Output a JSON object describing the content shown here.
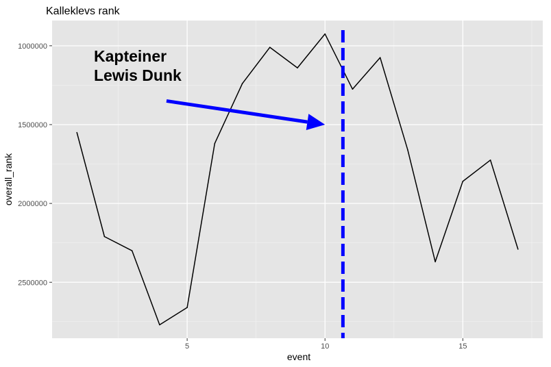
{
  "chart_data": {
    "type": "line",
    "title": "Kalleklevs rank",
    "xlabel": "event",
    "ylabel": "overall_rank",
    "x": [
      1,
      2,
      3,
      4,
      5,
      6,
      7,
      8,
      9,
      10,
      11,
      12,
      13,
      14,
      15,
      16,
      17
    ],
    "series": [
      {
        "values": [
          1550000,
          2210000,
          2300000,
          2770000,
          2660000,
          1620000,
          1240000,
          1010000,
          1140000,
          925000,
          1275000,
          1075000,
          1660000,
          2370000,
          1860000,
          1725000,
          2290000
        ],
        "color": "#000000"
      }
    ],
    "xlim": [
      0.1,
      17.9
    ],
    "ylim": [
      2855000,
      840000
    ],
    "y_reversed": true,
    "xticks": [
      5,
      10,
      15
    ],
    "xtick_labels": [
      "5",
      "10",
      "15"
    ],
    "yticks": [
      1000000,
      1500000,
      2000000,
      2500000
    ],
    "ytick_labels": [
      "1000000",
      "1500000",
      "2000000",
      "2500000"
    ],
    "grid": true,
    "panel_background": "#e5e5e5",
    "vline": {
      "x": 10.65,
      "color": "#0000ff",
      "style": "dashed"
    },
    "annotation": {
      "lines": [
        "Kapteiner",
        "Lewis Dunk"
      ],
      "arrow_color": "#0000ff",
      "arrow_from": {
        "x": 4.25,
        "y": 1350000
      },
      "arrow_to": {
        "x": 10.0,
        "y": 1500000
      }
    }
  }
}
